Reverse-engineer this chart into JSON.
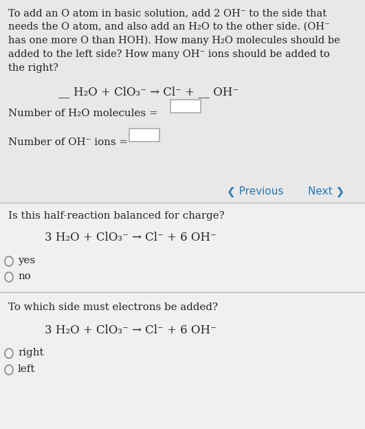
{
  "bg_color_top": "#e8e8e8",
  "bg_color_bottom": "#f0f0f0",
  "text_color": "#222222",
  "blue_color": "#2777b5",
  "separator_color": "#bbbbbb",
  "intro_lines": [
    "To add an O atom in basic solution, add 2 OH⁻ to the side that",
    "needs the O atom, and also add an H₂O to the other side. (OH⁻",
    "has one more O than HOH). How many H₂O molecules should be",
    "added to the left side? How many OH⁻ ions should be added to",
    "the right?"
  ],
  "equation1": "__ H₂O + ClO₃⁻ → Cl⁻ + __ OH⁻",
  "label_h2o": "Number of H₂O molecules =",
  "label_oh": "Number of OH⁻ ions =",
  "prev_text": "❮ Previous",
  "next_text": "Next ❯",
  "question2": "Is this half-reaction balanced for charge?",
  "equation2": "3 H₂O + ClO₃⁻ → Cl⁻ + 6 OH⁻",
  "opt_yes": "yes",
  "opt_no": "no",
  "question3": "To which side must electrons be added?",
  "equation3": "3 H₂O + ClO₃⁻ → Cl⁻ + 6 OH⁻",
  "opt_right": "right",
  "opt_left": "left",
  "figsize": [
    5.31,
    6.24
  ],
  "dpi": 100
}
